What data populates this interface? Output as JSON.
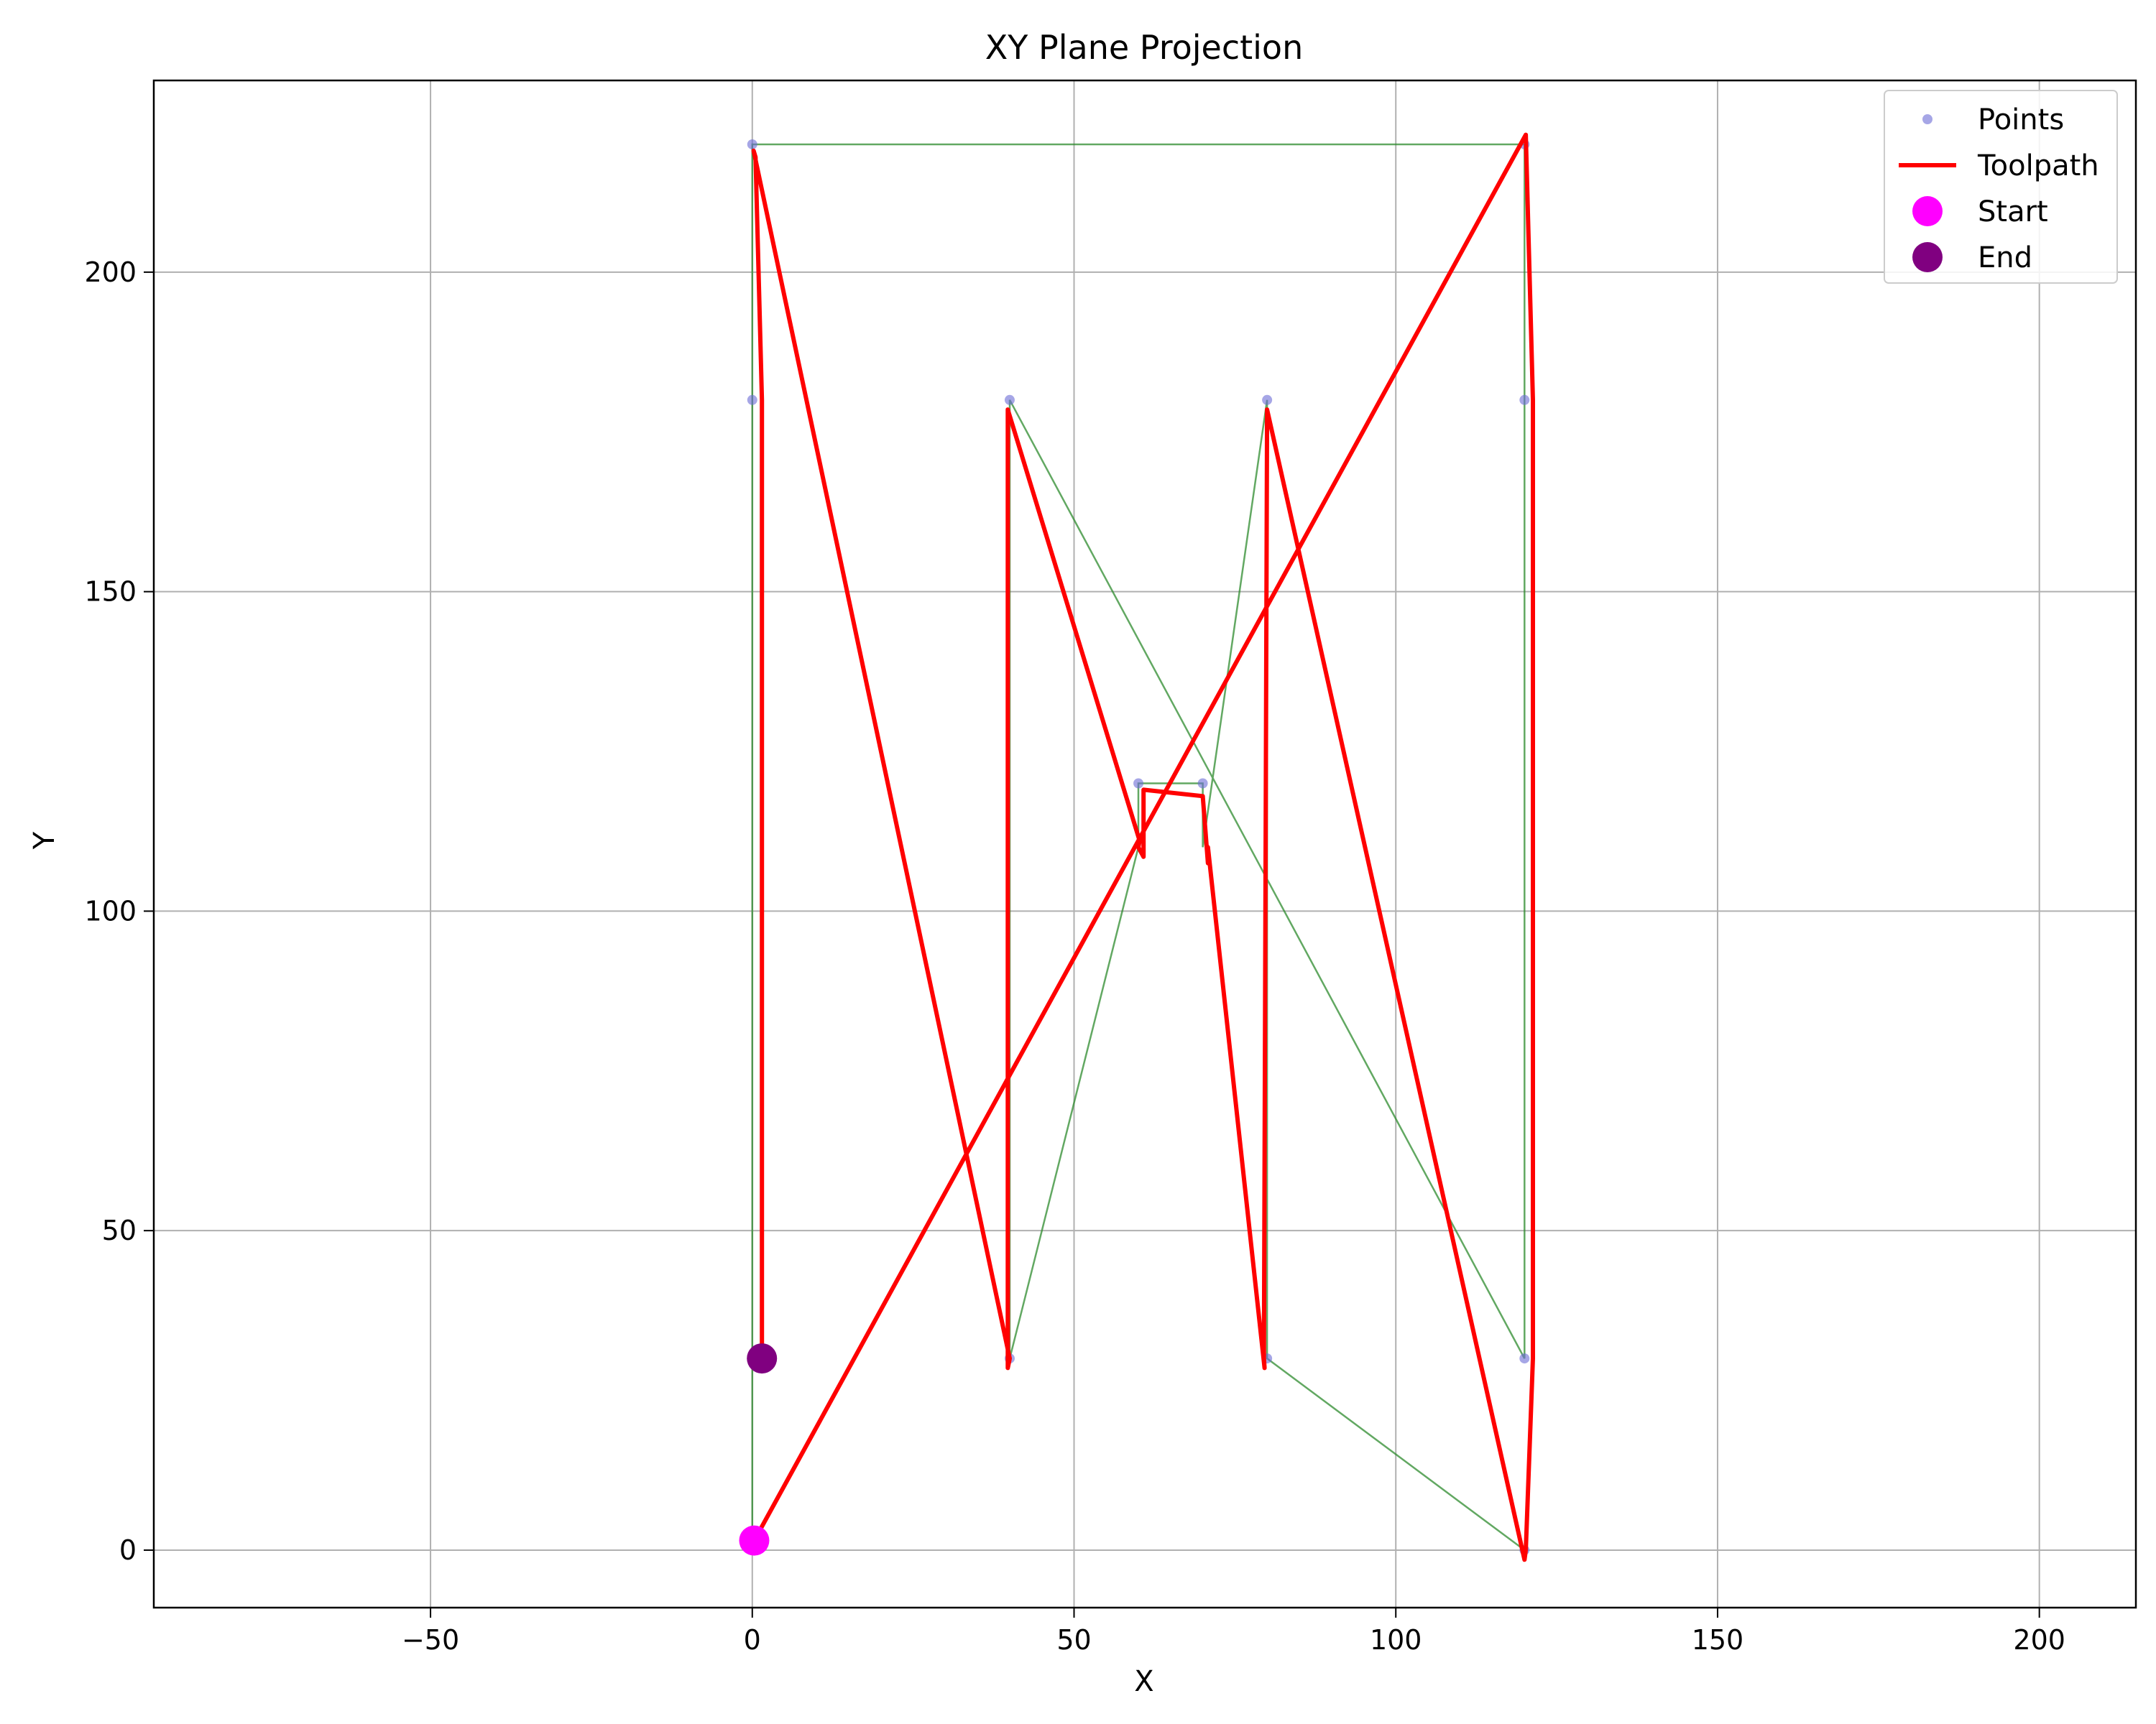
{
  "chart_data": {
    "type": "line",
    "title": "XY Plane Projection",
    "xlabel": "X",
    "ylabel": "Y",
    "xlim": [
      -93,
      215
    ],
    "ylim": [
      -9,
      230
    ],
    "xticks": [
      -50,
      0,
      50,
      100,
      150,
      200
    ],
    "xtick_labels": [
      "−50",
      "0",
      "50",
      "100",
      "150",
      "200"
    ],
    "yticks": [
      0,
      50,
      100,
      150,
      200
    ],
    "ytick_labels": [
      "0",
      "50",
      "100",
      "150",
      "200"
    ],
    "grid": true,
    "legend_position": "top-right",
    "series": [
      {
        "name": "Points",
        "kind": "scatter",
        "color": "#6b6bd6",
        "x": [
          0,
          0,
          0,
          0,
          40,
          40,
          60,
          70,
          80,
          80,
          120,
          120,
          120,
          120
        ],
        "y": [
          220,
          180,
          30,
          0,
          180,
          30,
          120,
          120,
          180,
          30,
          220,
          180,
          30,
          0
        ]
      },
      {
        "name": "",
        "kind": "line",
        "color": "#2e8b2e",
        "x": [
          0,
          0,
          0,
          0,
          120,
          120,
          120,
          40,
          40,
          60,
          60,
          70,
          70,
          80,
          80,
          120
        ],
        "y": [
          0,
          30,
          180,
          220,
          220,
          180,
          30,
          180,
          30,
          110,
          120,
          120,
          110,
          180,
          30,
          0
        ]
      },
      {
        "name": "Toolpath",
        "kind": "line",
        "color": "#ff0000",
        "x": [
          0.3,
          120.2,
          121.3,
          121.3,
          120.2,
          120.0,
          80.0,
          79.5,
          79.6,
          70.8,
          70.8,
          70.0,
          60.8,
          60.8,
          60.0,
          60.2,
          39.7,
          39.7,
          40.0,
          0.2,
          0.5,
          1.5,
          1.5
        ],
        "y": [
          1.5,
          221.5,
          180,
          30,
          0,
          -1.5,
          178.5,
          30,
          28.5,
          110,
          107.5,
          118,
          119,
          108.5,
          110,
          111,
          178.5,
          28.5,
          30,
          219,
          218,
          180,
          30
        ]
      },
      {
        "name": "Start",
        "kind": "marker",
        "color": "#ff00ff",
        "x": [
          0.3
        ],
        "y": [
          1.5
        ]
      },
      {
        "name": "End",
        "kind": "marker",
        "color": "#800080",
        "x": [
          1.5
        ],
        "y": [
          30
        ]
      }
    ]
  }
}
